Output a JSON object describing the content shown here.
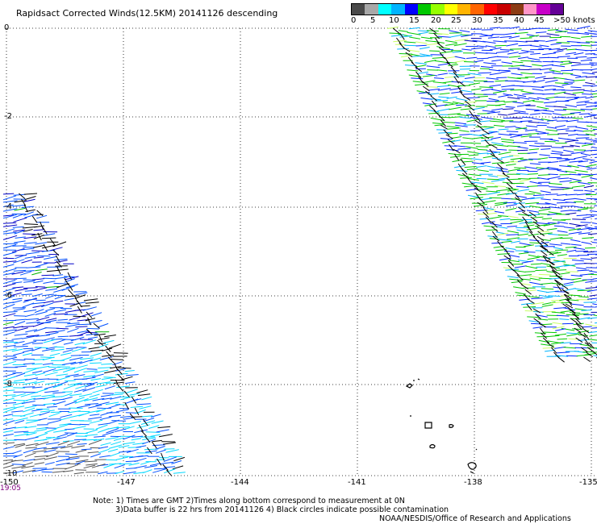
{
  "title": "Rapidsact Corrected Winds(12.5KM) 20141126 descending",
  "legend": {
    "labels": [
      "0",
      "5",
      "10",
      "15",
      "20",
      "25",
      "30",
      "35",
      "40",
      ">50 knots"
    ],
    "label_45": "45",
    "colors": [
      "#4a4a4a",
      "#a8a8a8",
      "#00ffff",
      "#00b4ff",
      "#0000ff",
      "#00c800",
      "#96ff00",
      "#ffff00",
      "#ffb400",
      "#ff6400",
      "#ff0000",
      "#c80000",
      "#8c3c14",
      "#ff96c8",
      "#c800c8",
      "#640096"
    ]
  },
  "map": {
    "lat_labels": [
      "0",
      "-2",
      "-4",
      "-6",
      "-8",
      "-10"
    ],
    "lon_labels": [
      "-150",
      "-147",
      "-144",
      "-141",
      "-138",
      "-135"
    ],
    "time_label": "19:05"
  },
  "notes": {
    "line1": "Note: 1) Times are GMT 2)Times along bottom correspond to measurement at 0N",
    "line2": "3)Data buffer is 22 hrs from 20141126 4) Black circles indicate possible contamination"
  },
  "credit": "NOAA/NESDIS/Office of Research and Applications"
}
